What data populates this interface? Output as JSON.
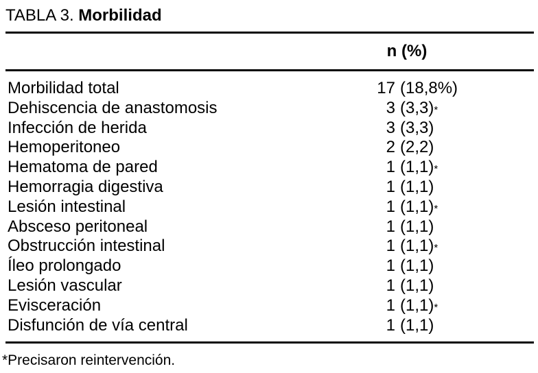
{
  "title": {
    "prefix": "TABLA 3. ",
    "emphasis": "Morbilidad"
  },
  "columns": {
    "value_header": "n (%)"
  },
  "rows": [
    {
      "label": "Morbilidad total",
      "n": "17",
      "pct": "(18,8%)",
      "mark": ""
    },
    {
      "label": "Dehiscencia de anastomosis",
      "n": "3",
      "pct": "(3,3)",
      "mark": "*"
    },
    {
      "label": "Infección de herida",
      "n": "3",
      "pct": "(3,3)",
      "mark": ""
    },
    {
      "label": "Hemoperitoneo",
      "n": "2",
      "pct": "(2,2)",
      "mark": ""
    },
    {
      "label": "Hematoma de pared",
      "n": "1",
      "pct": "(1,1)",
      "mark": "*"
    },
    {
      "label": "Hemorragia digestiva",
      "n": "1",
      "pct": "(1,1)",
      "mark": ""
    },
    {
      "label": "Lesión intestinal",
      "n": "1",
      "pct": "(1,1)",
      "mark": "*"
    },
    {
      "label": "Absceso peritoneal",
      "n": "1",
      "pct": "(1,1)",
      "mark": ""
    },
    {
      "label": "Obstrucción intestinal",
      "n": "1",
      "pct": "(1,1)",
      "mark": "*"
    },
    {
      "label": "Íleo prolongado",
      "n": "1",
      "pct": "(1,1)",
      "mark": ""
    },
    {
      "label": "Lesión vascular",
      "n": "1",
      "pct": "(1,1)",
      "mark": ""
    },
    {
      "label": "Evisceración",
      "n": "1",
      "pct": "(1,1)",
      "mark": "*"
    },
    {
      "label": "Disfunción de vía central",
      "n": "1",
      "pct": "(1,1)",
      "mark": ""
    }
  ],
  "footnote": "*Precisaron reintervención."
}
